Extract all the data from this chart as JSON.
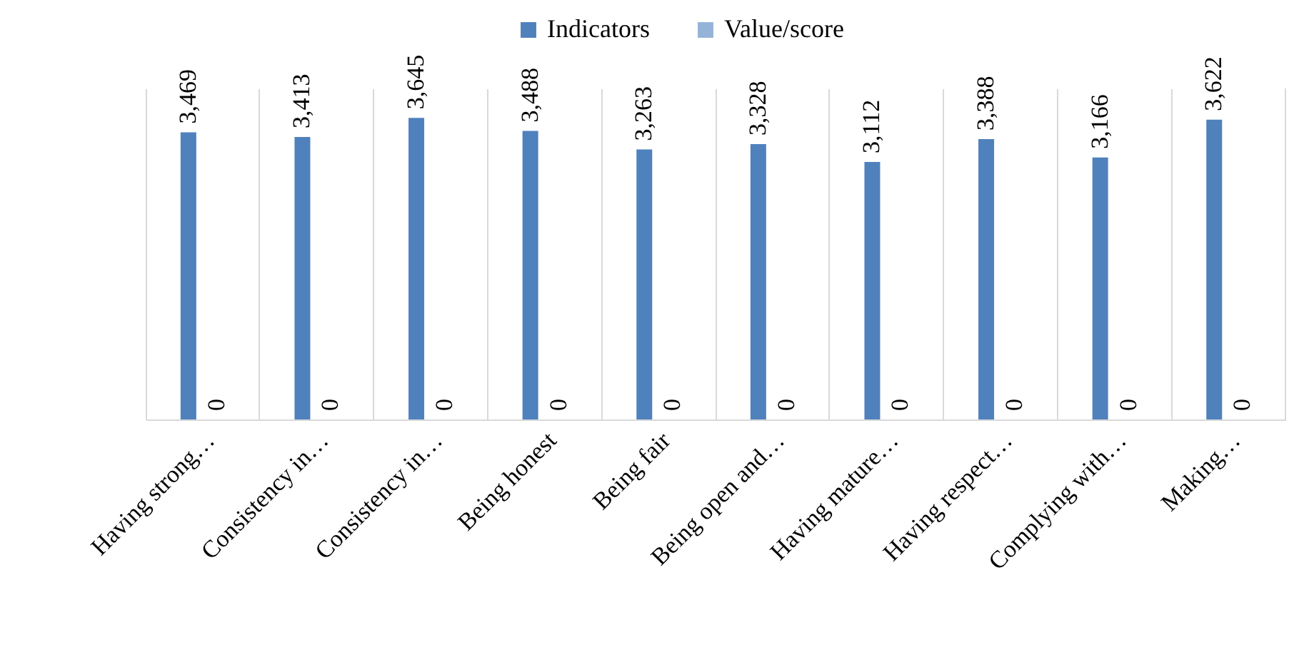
{
  "chart_data": {
    "type": "bar",
    "categories": [
      "Having strong…",
      "Consistency in…",
      "Consistency in…",
      "Being honest",
      "Being fair",
      "Being open and…",
      "Having mature…",
      "Having respect…",
      "Complying with…",
      "Making…"
    ],
    "series": [
      {
        "name": "Indicators",
        "color": "#4f81bd",
        "values": [
          3469,
          3413,
          3645,
          3488,
          3263,
          3328,
          3112,
          3388,
          3166,
          3622
        ],
        "value_labels": [
          "3,469",
          "3,413",
          "3,645",
          "3,488",
          "3,263",
          "3,328",
          "3,112",
          "3,388",
          "3,166",
          "3,622"
        ]
      },
      {
        "name": "Value/score",
        "color": "#95b3d7",
        "values": [
          0,
          0,
          0,
          0,
          0,
          0,
          0,
          0,
          0,
          0
        ],
        "value_labels": [
          "0",
          "0",
          "0",
          "0",
          "0",
          "0",
          "0",
          "0",
          "0",
          "0"
        ]
      }
    ],
    "grid": "x",
    "legend": "top"
  }
}
